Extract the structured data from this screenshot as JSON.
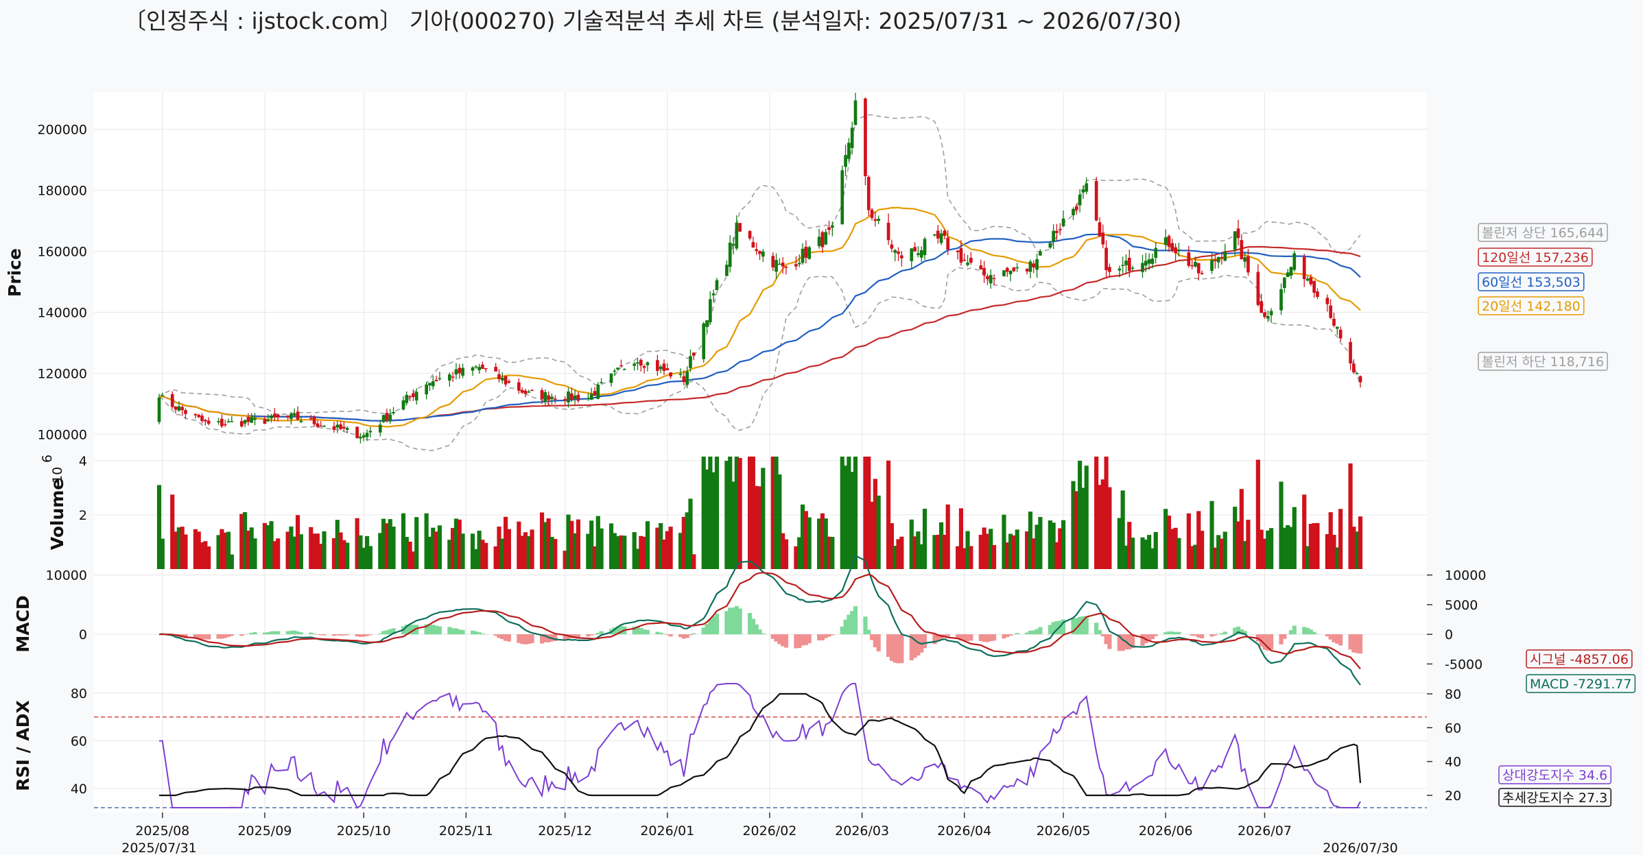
{
  "title": "〔인정주식 : ijstock.com〕 기아(000270) 기술적분석 추세 차트 (분석일자: 2025/07/31 ~ 2026/07/30)",
  "chart_data": {
    "type": "candlestick",
    "ticker": "기아(000270)",
    "period": [
      "2025/07/31",
      "2026/07/30"
    ],
    "panels": {
      "price": {
        "ylabel": "Price",
        "yticks": [
          100000,
          120000,
          140000,
          160000,
          180000,
          200000
        ],
        "ylim": [
          94000,
          212000
        ],
        "keypoints": [
          {
            "date": "2025/07/31",
            "close": 112000
          },
          {
            "date": "2025/08/15",
            "close": 103000
          },
          {
            "date": "2025/09/10",
            "close": 105500
          },
          {
            "date": "2025/10/01",
            "close": 99500
          },
          {
            "date": "2025/10/20",
            "close": 117000
          },
          {
            "date": "2025/11/05",
            "close": 122000
          },
          {
            "date": "2025/11/20",
            "close": 113000
          },
          {
            "date": "2025/12/08",
            "close": 112000
          },
          {
            "date": "2025/12/22",
            "close": 125000
          },
          {
            "date": "2026/01/06",
            "close": 118000
          },
          {
            "date": "2026/01/22",
            "close": 167000
          },
          {
            "date": "2026/02/05",
            "close": 154000
          },
          {
            "date": "2026/02/20",
            "close": 166000
          },
          {
            "date": "2026/02/27",
            "close": 208000
          },
          {
            "date": "2026/03/03",
            "close": 174000
          },
          {
            "date": "2026/03/12",
            "close": 158000
          },
          {
            "date": "2026/03/25",
            "close": 164000
          },
          {
            "date": "2026/04/06",
            "close": 152000
          },
          {
            "date": "2026/04/20",
            "close": 154000
          },
          {
            "date": "2026/05/08",
            "close": 180000
          },
          {
            "date": "2026/05/15",
            "close": 152000
          },
          {
            "date": "2026/06/02",
            "close": 163000
          },
          {
            "date": "2026/06/12",
            "close": 152000
          },
          {
            "date": "2026/06/22",
            "close": 165000
          },
          {
            "date": "2026/07/01",
            "close": 138000
          },
          {
            "date": "2026/07/10",
            "close": 157000
          },
          {
            "date": "2026/07/20",
            "close": 143000
          },
          {
            "date": "2026/07/26",
            "close": 124000
          },
          {
            "date": "2026/07/30",
            "close": 117000
          }
        ],
        "indicators": [
          {
            "name": "볼린저 상단",
            "value": "165,644",
            "color": "#9e9e9e"
          },
          {
            "name": "120일선",
            "value": "157,236",
            "color": "#c62828"
          },
          {
            "name": "60일선",
            "value": "153,503",
            "color": "#1f5fc2"
          },
          {
            "name": "20일선",
            "value": "142,180",
            "color": "#e69a00"
          },
          {
            "name": "볼린저 하단",
            "value": "118,716",
            "color": "#9e9e9e"
          }
        ]
      },
      "volume": {
        "ylabel": "Volume",
        "exponent": "10",
        "exponent_power": "6",
        "yticks": [
          2,
          4
        ],
        "ylim": [
          0,
          4.3
        ]
      },
      "macd": {
        "ylabel": "MACD",
        "yticks_left": [
          0,
          10000
        ],
        "yticks_right": [
          -5000,
          0,
          5000,
          10000
        ],
        "ylim": [
          -7500,
          11000
        ],
        "labels": [
          {
            "name": "시그널",
            "value": "-4857.06",
            "color": "#b71c1c"
          },
          {
            "name": "MACD",
            "value": "-7291.77",
            "color": "#0b6e5b"
          }
        ]
      },
      "rsi_adx": {
        "ylabel": "RSI / ADX",
        "yticks_left": [
          40,
          60,
          80
        ],
        "yticks_right": [
          20,
          40,
          60,
          80
        ],
        "ylim": [
          30,
          86
        ],
        "overbought": 70,
        "oversold": 30,
        "labels": [
          {
            "name": "상대강도지수",
            "value": "34.6",
            "color": "#7b3fd0"
          },
          {
            "name": "추세강도지수",
            "value": "27.3",
            "color": "#111111"
          }
        ]
      }
    },
    "xticks": [
      {
        "date": "2025/08/01",
        "label": "2025/08"
      },
      {
        "date": "2025/09/01",
        "label": "2025/09"
      },
      {
        "date": "2025/10/01",
        "label": "2025/10"
      },
      {
        "date": "2025/11/01",
        "label": "2025/11"
      },
      {
        "date": "2025/12/01",
        "label": "2025/12"
      },
      {
        "date": "2026/01/01",
        "label": "2026/01"
      },
      {
        "date": "2026/02/01",
        "label": "2026/02"
      },
      {
        "date": "2026/03/01",
        "label": "2026/03"
      },
      {
        "date": "2026/04/01",
        "label": "2026/04"
      },
      {
        "date": "2026/05/01",
        "label": "2026/05"
      },
      {
        "date": "2026/06/01",
        "label": "2026/06"
      },
      {
        "date": "2026/07/01",
        "label": "2026/07"
      }
    ],
    "start_label": "2025/07/31",
    "end_label": "2026/07/30",
    "colors": {
      "up": "#127a12",
      "down": "#d0121c",
      "macd_hist_pos": "#7fd99a",
      "macd_hist_neg": "#f09090"
    }
  }
}
